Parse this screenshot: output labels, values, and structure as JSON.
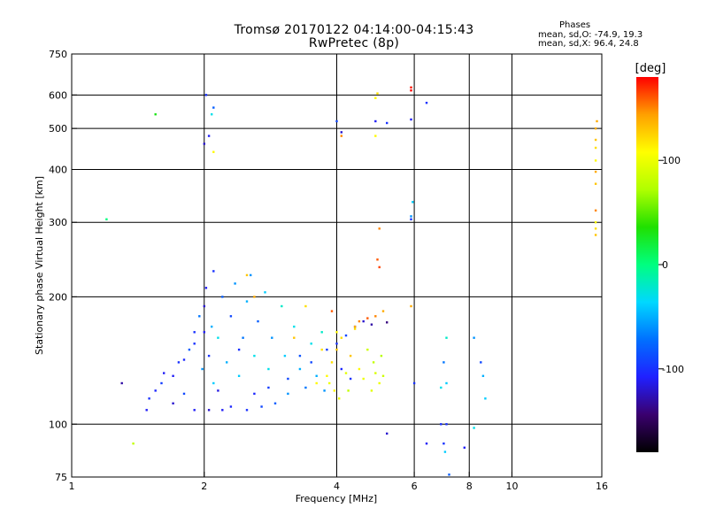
{
  "header": {
    "title_line1": "Tromsø 20170122 04:14:00-04:15:43",
    "title_line2": "RwPretec (8p)"
  },
  "stats": {
    "heading": "Phases",
    "o_mode": "mean, sd,O: -74.9, 19.3",
    "x_mode": "mean, sd,X: 96.4, 24.8"
  },
  "chart_data": {
    "type": "scatter",
    "xlabel": "Frequency [MHz]",
    "ylabel": "Stationary phase Virtual Height [km]",
    "x_scale": "log",
    "y_scale": "log",
    "xlim": [
      1,
      16
    ],
    "ylim": [
      75,
      750
    ],
    "x_ticks": [
      1,
      2,
      4,
      6,
      8,
      10,
      16
    ],
    "y_ticks": [
      75,
      100,
      200,
      300,
      400,
      500,
      600,
      750
    ],
    "grid_x": [
      2,
      4,
      6,
      8,
      10
    ],
    "grid_y": [
      100,
      200,
      300,
      400,
      500,
      600
    ],
    "colorbar": {
      "label": "[deg]",
      "range": [
        -180,
        180
      ],
      "ticks": [
        100,
        0,
        -100
      ],
      "colors": [
        "#000000",
        "#3a006e",
        "#2020ff",
        "#0070ff",
        "#00d8ff",
        "#00ff80",
        "#20e000",
        "#b0ff00",
        "#ffff00",
        "#ffa000",
        "#ff0000"
      ]
    },
    "series": [
      {
        "name": "O",
        "points": [
          [
            1.3,
            125,
            -130
          ],
          [
            1.48,
            108,
            -110
          ],
          [
            1.5,
            115,
            -100
          ],
          [
            1.55,
            120,
            -105
          ],
          [
            1.6,
            125,
            -95
          ],
          [
            1.62,
            132,
            -110
          ],
          [
            1.7,
            112,
            -120
          ],
          [
            1.75,
            140,
            -100
          ],
          [
            1.8,
            118,
            -90
          ],
          [
            1.85,
            150,
            -80
          ],
          [
            1.9,
            165,
            -100
          ],
          [
            1.9,
            108,
            -110
          ],
          [
            1.95,
            180,
            -70
          ],
          [
            1.98,
            135,
            -60
          ],
          [
            2.0,
            190,
            -120
          ],
          [
            2.02,
            210,
            -110
          ],
          [
            2.05,
            145,
            -100
          ],
          [
            2.05,
            108,
            -120
          ],
          [
            2.08,
            170,
            -50
          ],
          [
            2.1,
            230,
            -100
          ],
          [
            2.1,
            125,
            -40
          ],
          [
            2.15,
            160,
            -30
          ],
          [
            2.2,
            200,
            -80
          ],
          [
            2.2,
            108,
            -110
          ],
          [
            2.25,
            140,
            -50
          ],
          [
            2.3,
            180,
            -90
          ],
          [
            2.35,
            215,
            -60
          ],
          [
            2.4,
            130,
            -40
          ],
          [
            2.45,
            160,
            -70
          ],
          [
            2.5,
            108,
            -100
          ],
          [
            2.5,
            195,
            -50
          ],
          [
            2.55,
            225,
            -60
          ],
          [
            2.6,
            145,
            -30
          ],
          [
            2.65,
            175,
            -80
          ],
          [
            2.7,
            110,
            -90
          ],
          [
            2.75,
            205,
            -40
          ],
          [
            2.8,
            135,
            -30
          ],
          [
            2.85,
            160,
            -60
          ],
          [
            2.9,
            112,
            -80
          ],
          [
            3.0,
            190,
            -20
          ],
          [
            3.05,
            145,
            -40
          ],
          [
            3.1,
            118,
            -60
          ],
          [
            3.2,
            170,
            -30
          ],
          [
            3.3,
            135,
            -50
          ],
          [
            3.4,
            122,
            -70
          ],
          [
            3.5,
            155,
            -30
          ],
          [
            3.6,
            130,
            -50
          ],
          [
            3.7,
            165,
            -20
          ],
          [
            3.75,
            120,
            -60
          ],
          [
            1.7,
            130,
            -110
          ],
          [
            1.8,
            142,
            -105
          ],
          [
            1.9,
            155,
            -100
          ],
          [
            2.0,
            165,
            -110
          ],
          [
            2.15,
            120,
            -115
          ],
          [
            2.3,
            110,
            -105
          ],
          [
            2.4,
            150,
            -100
          ],
          [
            2.6,
            118,
            -105
          ],
          [
            2.8,
            122,
            -95
          ],
          [
            3.1,
            128,
            -90
          ],
          [
            3.3,
            145,
            -85
          ],
          [
            3.5,
            140,
            -90
          ],
          [
            3.8,
            150,
            -95
          ],
          [
            4.0,
            155,
            -100
          ],
          [
            4.1,
            135,
            -105
          ],
          [
            4.2,
            162,
            -90
          ],
          [
            4.3,
            128,
            -100
          ],
          [
            4.4,
            170,
            -110
          ],
          [
            4.6,
            175,
            -120
          ],
          [
            4.8,
            172,
            -130
          ],
          [
            5.2,
            174,
            -140
          ],
          [
            2.05,
            480,
            -110
          ],
          [
            2.08,
            540,
            -30
          ],
          [
            2.1,
            560,
            -80
          ],
          [
            2.02,
            600,
            -100
          ],
          [
            2.0,
            460,
            -120
          ],
          [
            4.9,
            520,
            -110
          ],
          [
            5.2,
            515,
            -100
          ],
          [
            5.9,
            525,
            -110
          ],
          [
            6.4,
            575,
            -100
          ],
          [
            5.9,
            305,
            -100
          ],
          [
            5.9,
            310,
            -60
          ],
          [
            5.95,
            335,
            -40
          ],
          [
            4.1,
            490,
            -120
          ],
          [
            4.0,
            520,
            -90
          ],
          [
            6.4,
            90,
            -110
          ],
          [
            6.9,
            100,
            -100
          ],
          [
            7.0,
            90,
            -100
          ],
          [
            7.1,
            100,
            -100
          ],
          [
            7.2,
            76,
            -80
          ],
          [
            7.05,
            86,
            -40
          ],
          [
            7.8,
            88,
            -110
          ],
          [
            8.2,
            98,
            -30
          ],
          [
            5.2,
            95,
            -120
          ],
          [
            7.0,
            140,
            -70
          ],
          [
            7.1,
            125,
            -40
          ],
          [
            6.9,
            122,
            -30
          ],
          [
            7.1,
            160,
            -20
          ],
          [
            8.2,
            160,
            -60
          ],
          [
            8.5,
            140,
            -90
          ],
          [
            8.6,
            130,
            -50
          ],
          [
            8.7,
            115,
            -40
          ],
          [
            6.0,
            125,
            -100
          ]
        ]
      },
      {
        "name": "X",
        "points": [
          [
            1.2,
            305,
            0
          ],
          [
            1.55,
            540,
            30
          ],
          [
            1.38,
            90,
            80
          ],
          [
            2.1,
            440,
            110
          ],
          [
            3.8,
            130,
            110
          ],
          [
            3.85,
            125,
            100
          ],
          [
            3.9,
            140,
            120
          ],
          [
            3.95,
            120,
            110
          ],
          [
            4.0,
            150,
            130
          ],
          [
            4.05,
            115,
            100
          ],
          [
            4.1,
            160,
            120
          ],
          [
            4.2,
            132,
            95
          ],
          [
            4.25,
            120,
            80
          ],
          [
            4.3,
            145,
            130
          ],
          [
            4.4,
            170,
            140
          ],
          [
            4.5,
            135,
            110
          ],
          [
            4.6,
            128,
            100
          ],
          [
            4.7,
            150,
            85
          ],
          [
            4.8,
            120,
            95
          ],
          [
            4.85,
            140,
            80
          ],
          [
            4.9,
            132,
            90
          ],
          [
            5.0,
            125,
            100
          ],
          [
            5.05,
            145,
            75
          ],
          [
            5.1,
            130,
            85
          ],
          [
            4.5,
            175,
            150
          ],
          [
            4.7,
            178,
            160
          ],
          [
            4.9,
            180,
            150
          ],
          [
            5.1,
            185,
            140
          ],
          [
            4.4,
            168,
            120
          ],
          [
            4.0,
            165,
            110
          ],
          [
            2.5,
            225,
            130
          ],
          [
            2.6,
            200,
            140
          ],
          [
            3.4,
            190,
            120
          ],
          [
            3.2,
            160,
            130
          ],
          [
            4.9,
            590,
            110
          ],
          [
            4.95,
            605,
            120
          ],
          [
            5.9,
            615,
            180
          ],
          [
            5.9,
            625,
            175
          ],
          [
            4.9,
            480,
            110
          ],
          [
            5.0,
            290,
            150
          ],
          [
            4.95,
            245,
            160
          ],
          [
            5.0,
            235,
            165
          ],
          [
            5.9,
            190,
            140
          ],
          [
            15.5,
            500,
            140
          ],
          [
            15.5,
            470,
            130
          ],
          [
            15.5,
            450,
            120
          ],
          [
            15.5,
            420,
            110
          ],
          [
            15.5,
            395,
            140
          ],
          [
            15.5,
            370,
            130
          ],
          [
            15.5,
            320,
            150
          ],
          [
            15.5,
            300,
            110
          ],
          [
            15.5,
            290,
            120
          ],
          [
            15.5,
            280,
            130
          ],
          [
            15.6,
            520,
            140
          ],
          [
            4.1,
            480,
            150
          ],
          [
            3.9,
            185,
            160
          ],
          [
            3.7,
            150,
            120
          ],
          [
            3.6,
            125,
            110
          ]
        ]
      }
    ]
  }
}
